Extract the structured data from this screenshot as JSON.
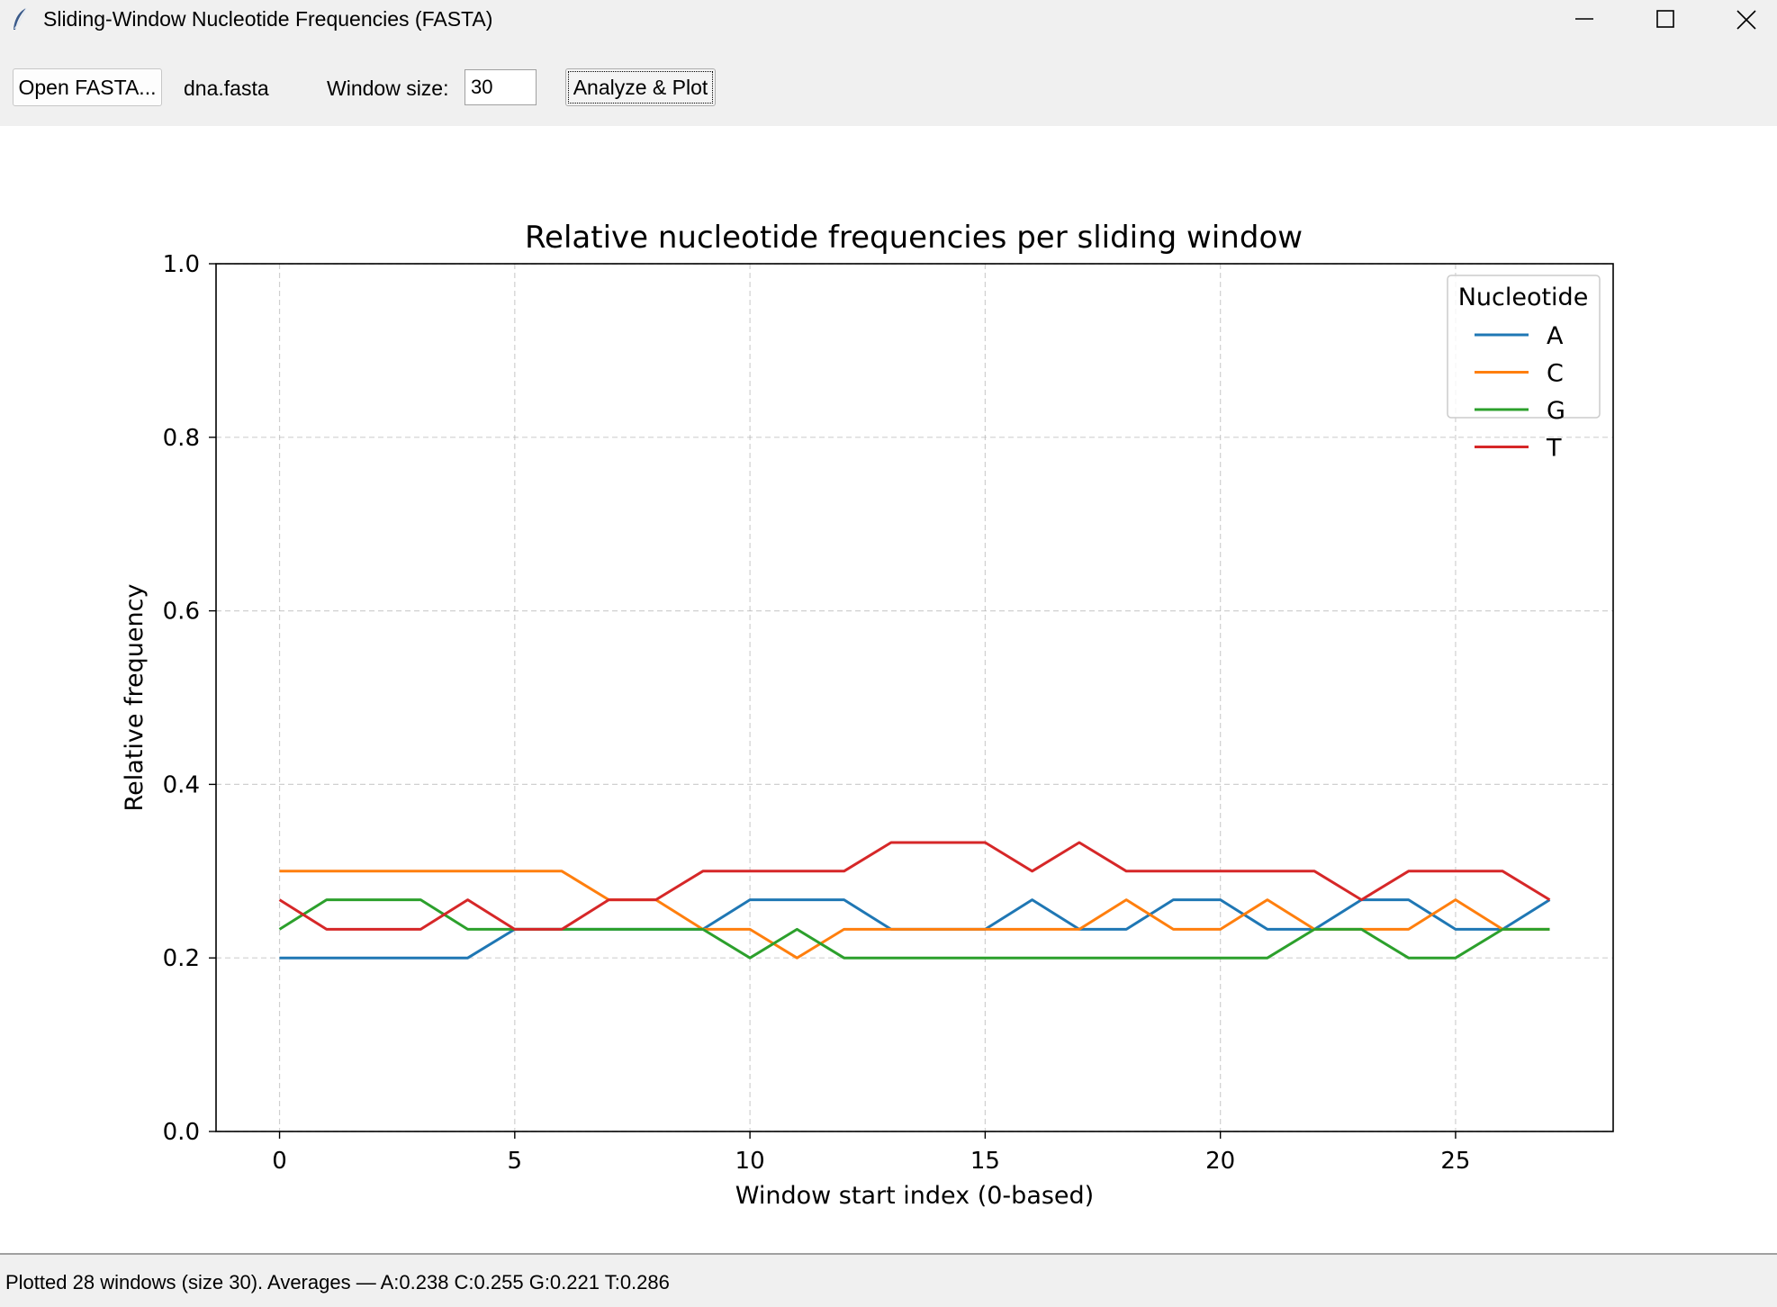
{
  "window": {
    "title": "Sliding-Window Nucleotide Frequencies (FASTA)",
    "icons": [
      "feather-icon",
      "minimize-icon",
      "maximize-icon",
      "close-icon"
    ]
  },
  "toolbar": {
    "open_label": "Open FASTA...",
    "file_name": "dna.fasta",
    "window_size_label": "Window size:",
    "window_size_value": "30",
    "analyze_label": "Analyze & Plot"
  },
  "status": {
    "text": "Plotted 28 windows (size 30). Averages — A:0.238 C:0.255 G:0.221 T:0.286"
  },
  "chart_data": {
    "type": "line",
    "title": "Relative nucleotide frequencies per sliding window",
    "xlabel": "Window start index (0-based)",
    "ylabel": "Relative frequency",
    "xlim": [
      -1.35,
      28.35
    ],
    "ylim": [
      0.0,
      1.0
    ],
    "x_ticks": [
      0,
      5,
      10,
      15,
      20,
      25
    ],
    "y_ticks": [
      "0.0",
      "0.2",
      "0.4",
      "0.6",
      "0.8",
      "1.0"
    ],
    "grid": true,
    "legend_title": "Nucleotide",
    "legend_position": "top-right",
    "x": [
      0,
      1,
      2,
      3,
      4,
      5,
      6,
      7,
      8,
      9,
      10,
      11,
      12,
      13,
      14,
      15,
      16,
      17,
      18,
      19,
      20,
      21,
      22,
      23,
      24,
      25,
      26,
      27
    ],
    "series": [
      {
        "name": "A",
        "color": "#1f77b4",
        "values": [
          0.2,
          0.2,
          0.2,
          0.2,
          0.2,
          0.233,
          0.233,
          0.233,
          0.233,
          0.233,
          0.267,
          0.267,
          0.267,
          0.233,
          0.233,
          0.233,
          0.267,
          0.233,
          0.233,
          0.267,
          0.267,
          0.233,
          0.233,
          0.267,
          0.267,
          0.233,
          0.233,
          0.267
        ]
      },
      {
        "name": "C",
        "color": "#ff7f0e",
        "values": [
          0.3,
          0.3,
          0.3,
          0.3,
          0.3,
          0.3,
          0.3,
          0.267,
          0.267,
          0.233,
          0.233,
          0.2,
          0.233,
          0.233,
          0.233,
          0.233,
          0.233,
          0.233,
          0.267,
          0.233,
          0.233,
          0.267,
          0.233,
          0.233,
          0.233,
          0.267,
          0.233,
          0.233
        ]
      },
      {
        "name": "G",
        "color": "#2ca02c",
        "values": [
          0.233,
          0.267,
          0.267,
          0.267,
          0.233,
          0.233,
          0.233,
          0.233,
          0.233,
          0.233,
          0.2,
          0.233,
          0.2,
          0.2,
          0.2,
          0.2,
          0.2,
          0.2,
          0.2,
          0.2,
          0.2,
          0.2,
          0.233,
          0.233,
          0.2,
          0.2,
          0.233,
          0.233
        ]
      },
      {
        "name": "T",
        "color": "#d62728",
        "values": [
          0.267,
          0.233,
          0.233,
          0.233,
          0.267,
          0.233,
          0.233,
          0.267,
          0.267,
          0.3,
          0.3,
          0.3,
          0.3,
          0.333,
          0.333,
          0.333,
          0.3,
          0.333,
          0.3,
          0.3,
          0.3,
          0.3,
          0.3,
          0.267,
          0.3,
          0.3,
          0.3,
          0.267
        ]
      }
    ]
  }
}
